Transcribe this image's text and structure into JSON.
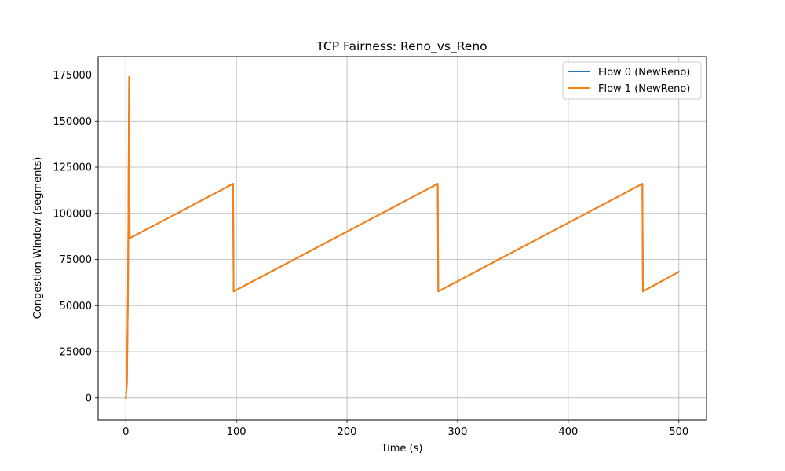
{
  "chart_data": {
    "type": "line",
    "title": "TCP Fairness: Reno_vs_Reno",
    "xlabel": "Time (s)",
    "ylabel": "Congestion Window (segments)",
    "xlim": [
      -25,
      525
    ],
    "ylim": [
      -12000,
      185000
    ],
    "xticks": [
      0,
      100,
      200,
      300,
      400,
      500
    ],
    "xtick_labels": [
      "0",
      "100",
      "200",
      "300",
      "400",
      "500"
    ],
    "yticks": [
      0,
      25000,
      50000,
      75000,
      100000,
      125000,
      150000,
      175000
    ],
    "ytick_labels": [
      "0",
      "25000",
      "50000",
      "75000",
      "100000",
      "125000",
      "150000",
      "175000"
    ],
    "grid": true,
    "legend_position": "upper right",
    "series": [
      {
        "name": "Flow 0 (NewReno)",
        "color": "#1f77b4",
        "x": [
          0,
          1.0,
          2.0,
          3.0,
          3.5,
          97.0,
          97.5,
          282.0,
          282.5,
          467.0,
          467.5,
          500
        ],
        "y": [
          0,
          8000,
          60000,
          174000,
          86500,
          116000,
          57700,
          116000,
          57700,
          116000,
          57700,
          68300
        ]
      },
      {
        "name": "Flow 1 (NewReno)",
        "color": "#ff7f0e",
        "x": [
          0,
          1.0,
          2.0,
          3.0,
          3.5,
          97.0,
          97.5,
          282.0,
          282.5,
          467.0,
          467.5,
          500
        ],
        "y": [
          0,
          8000,
          60000,
          174000,
          86500,
          116000,
          57700,
          116000,
          57700,
          116000,
          57700,
          68300
        ]
      }
    ]
  }
}
